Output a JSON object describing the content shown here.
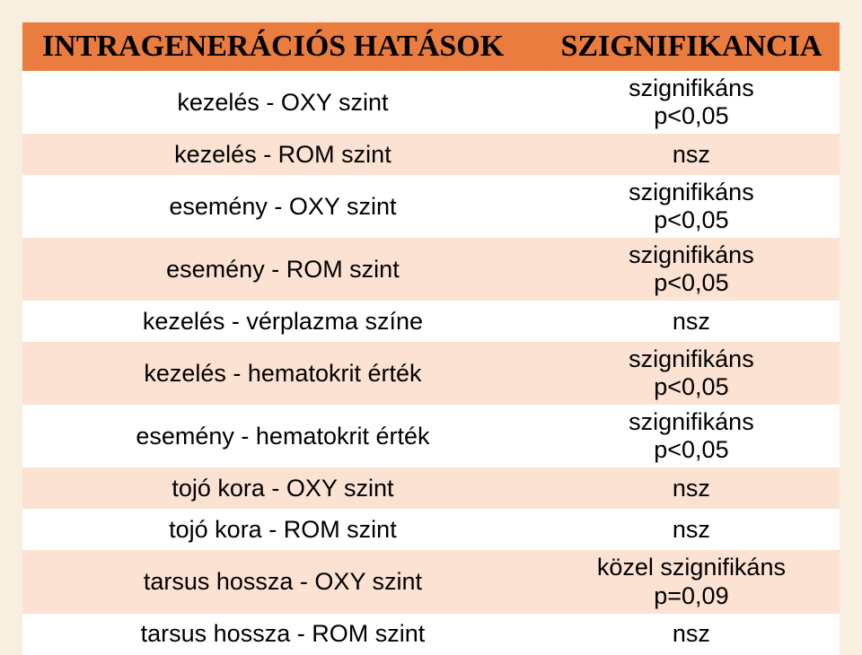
{
  "header": {
    "left": "INTRAGENERÁCIÓS HATÁSOK",
    "right": "SZIGNIFIKANCIA"
  },
  "rows": [
    {
      "label": "kezelés - OXY szint",
      "value": "szignifikáns\np<0,05",
      "band": "white",
      "size": "tall"
    },
    {
      "label": "kezelés - ROM szint",
      "value": "nsz",
      "band": "pale",
      "size": "short"
    },
    {
      "label": "esemény - OXY szint",
      "value": "szignifikáns\np<0,05",
      "band": "white",
      "size": "tall"
    },
    {
      "label": "esemény - ROM szint",
      "value": "szignifikáns\np<0,05",
      "band": "pale",
      "size": "tall"
    },
    {
      "label": "kezelés - vérplazma színe",
      "value": "nsz",
      "band": "white",
      "size": "short"
    },
    {
      "label": "kezelés - hematokrit érték",
      "value": "szignifikáns\np<0,05",
      "band": "pale",
      "size": "tall"
    },
    {
      "label": "esemény - hematokrit érték",
      "value": "szignifikáns\np<0,05",
      "band": "white",
      "size": "tall"
    },
    {
      "label": "tojó kora - OXY szint",
      "value": "nsz",
      "band": "pale",
      "size": "short"
    },
    {
      "label": "tojó kora - ROM szint",
      "value": "nsz",
      "band": "white",
      "size": "short"
    },
    {
      "label": "tarsus hossza - OXY szint",
      "value": "közel szignifikáns\np=0,09",
      "band": "pale",
      "size": "tall"
    },
    {
      "label": "tarsus hossza - ROM szint",
      "value": "nsz",
      "band": "white",
      "size": "short"
    }
  ],
  "colors": {
    "slide_bg": "#f8efe0",
    "header_bg": "#e97c3e",
    "row_white": "#ffffff",
    "row_pale": "#fbe2d3"
  }
}
